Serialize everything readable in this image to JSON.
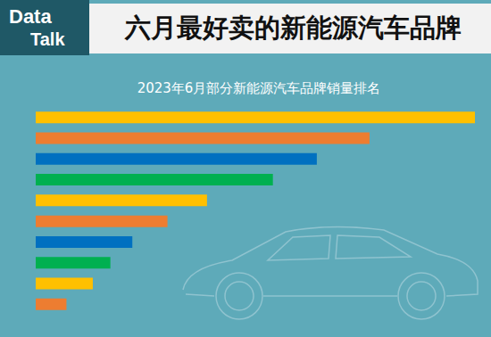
{
  "badge": [
    "Data",
    "Talk"
  ],
  "chart_data": {
    "type": "bar",
    "title": "六月最好卖的新能源汽车品牌",
    "subtitle": "2023年6月部分新能源汽车品牌销量排名",
    "orientation": "horizontal",
    "categories": [
      null,
      null,
      null,
      null,
      null,
      null,
      null,
      null,
      null,
      null
    ],
    "values": [
      100,
      76,
      64,
      54,
      39,
      30,
      22,
      17,
      13,
      7
    ],
    "colors": [
      "#ffc000",
      "#ed7d31",
      "#0070c0",
      "#00b050",
      "#ffc000",
      "#ed7d31",
      "#0070c0",
      "#00b050",
      "#ffc000",
      "#ed7d31"
    ],
    "xlim": [
      0,
      100
    ],
    "grid": false,
    "tick_labels": false
  }
}
